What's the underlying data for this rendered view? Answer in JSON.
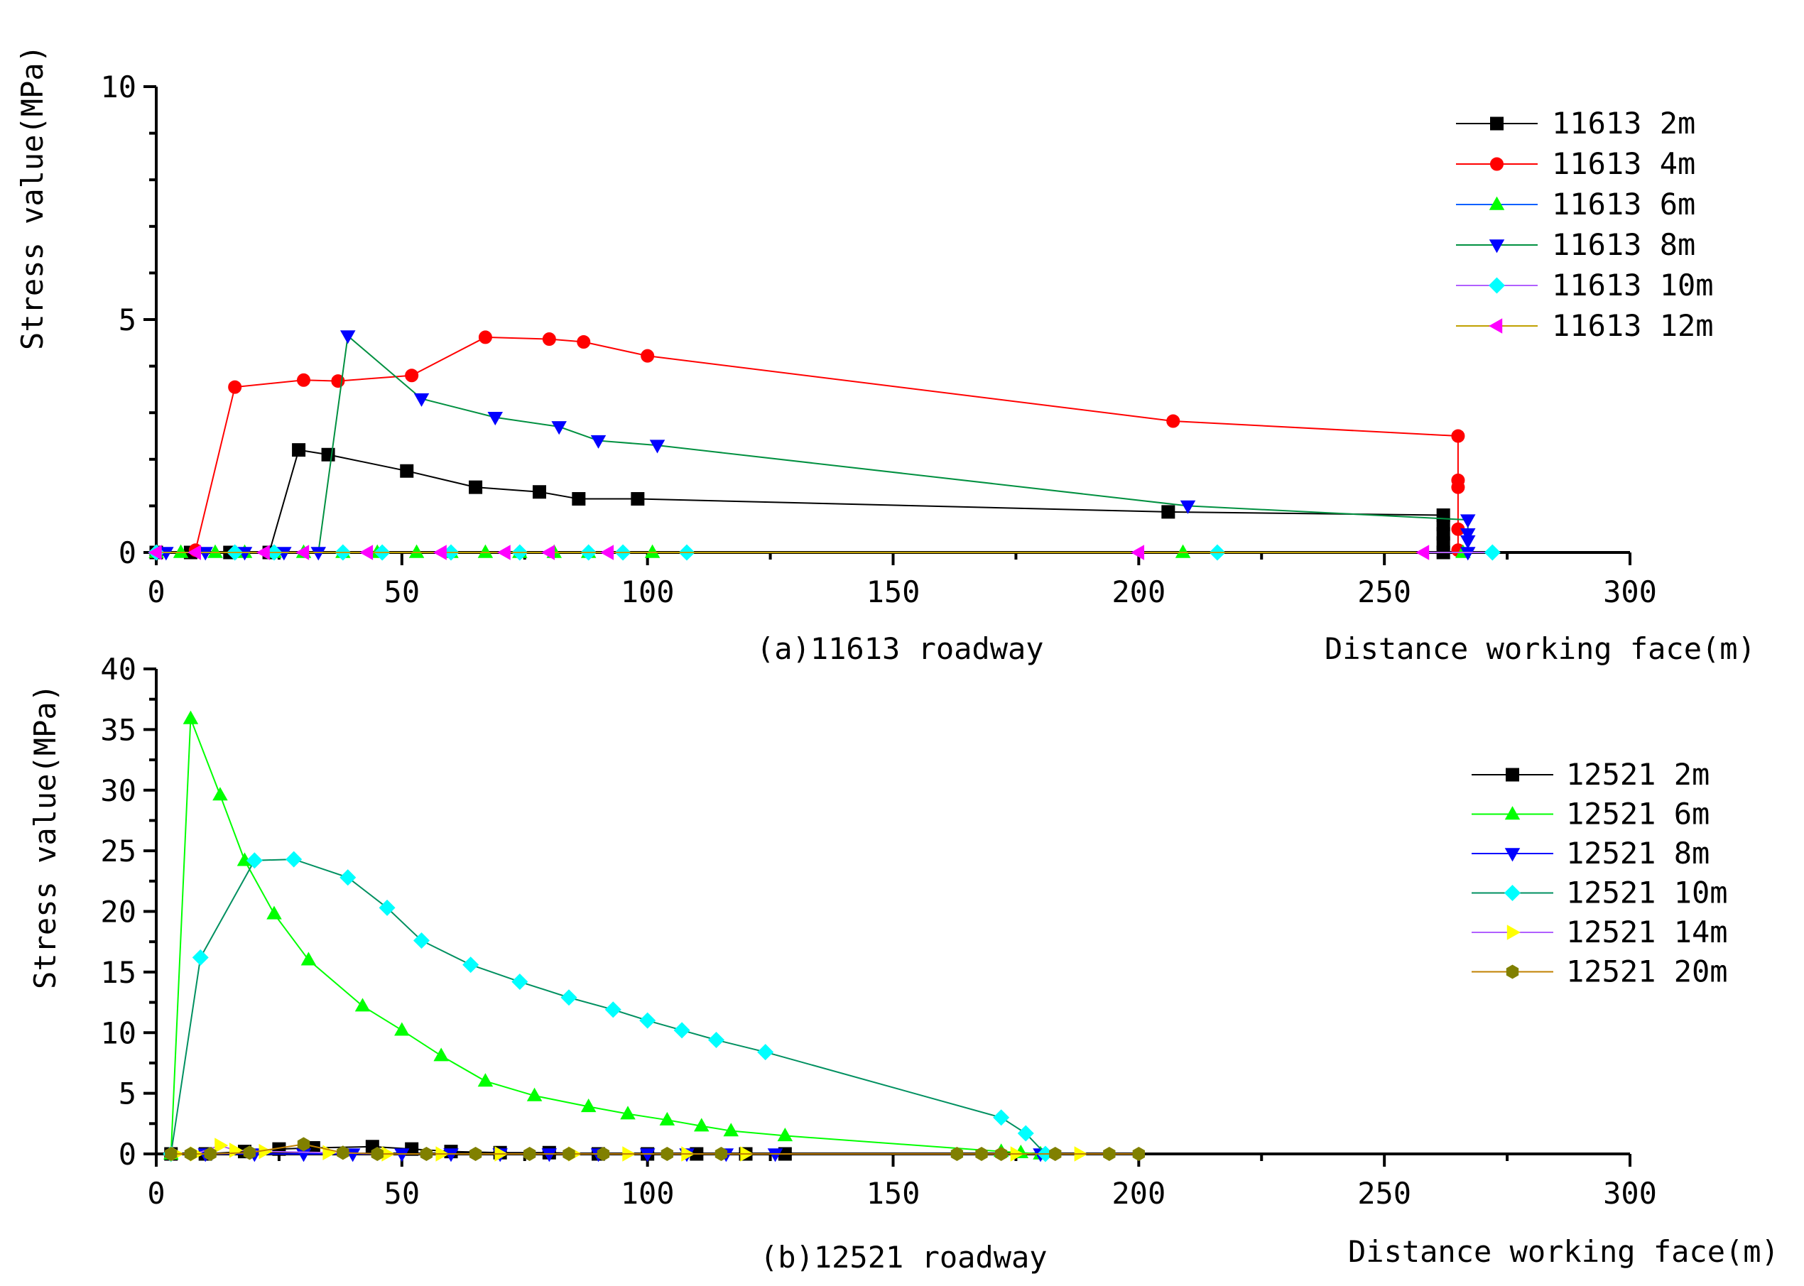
{
  "chart_data": [
    {
      "type": "line",
      "caption": "(a)11613 roadway",
      "xlabel": "Distance working face(m)",
      "ylabel": "Stress value(MPa)",
      "xlim": [
        0,
        300
      ],
      "ylim": [
        0,
        10
      ],
      "xticks": [
        "0",
        "50",
        "100",
        "150",
        "200",
        "250",
        "300"
      ],
      "yticks": [
        "0",
        "5",
        "10"
      ],
      "legend_position": "top-right",
      "series": [
        {
          "name": "11613 2m",
          "color": "#000000",
          "line_color": "#000000",
          "marker": "square",
          "x": [
            0,
            7,
            15,
            23,
            29,
            35,
            51,
            65,
            78,
            86,
            98,
            206,
            262,
            262,
            262,
            262,
            262
          ],
          "y": [
            0,
            0,
            0,
            0,
            2.2,
            2.1,
            1.75,
            1.4,
            1.3,
            1.15,
            1.15,
            0.87,
            0.8,
            0.6,
            0.4,
            0.2,
            0
          ]
        },
        {
          "name": "11613 4m",
          "color": "#ff0000",
          "line_color": "#ff0000",
          "marker": "circle",
          "x": [
            8,
            16,
            30,
            37,
            52,
            67,
            80,
            87,
            100,
            207,
            265,
            265,
            265,
            265,
            265
          ],
          "y": [
            0.05,
            3.55,
            3.7,
            3.68,
            3.8,
            4.62,
            4.58,
            4.52,
            4.22,
            2.82,
            2.5,
            1.55,
            1.4,
            0.5,
            0.05
          ]
        },
        {
          "name": "11613 6m",
          "color": "#00ff00",
          "line_color": "#0060ff",
          "marker": "triangle-up",
          "x": [
            0,
            5,
            12,
            18,
            24,
            30,
            38,
            45,
            53,
            60,
            67,
            74,
            81,
            88,
            101,
            209,
            266
          ],
          "y": [
            0,
            0,
            0,
            0,
            0,
            0,
            0,
            0,
            0,
            0,
            0,
            0,
            0,
            0,
            0,
            0,
            0
          ]
        },
        {
          "name": "11613 8m",
          "color": "#0000ff",
          "line_color": "#009040",
          "marker": "triangle-down",
          "x": [
            2,
            10,
            18,
            26,
            33,
            39,
            54,
            69,
            82,
            90,
            102,
            210,
            267,
            267,
            267,
            267
          ],
          "y": [
            0,
            0,
            0,
            0,
            0,
            4.65,
            3.3,
            2.9,
            2.7,
            2.4,
            2.3,
            1.0,
            0.7,
            0.4,
            0.25,
            0
          ]
        },
        {
          "name": "11613 10m",
          "color": "#00ffff",
          "line_color": "#b060ff",
          "marker": "diamond",
          "x": [
            0,
            16,
            24,
            38,
            46,
            60,
            74,
            88,
            95,
            108,
            216,
            272
          ],
          "y": [
            0,
            0,
            0,
            0,
            0,
            0,
            0,
            0,
            0,
            0,
            0,
            0
          ]
        },
        {
          "name": "11613 12m",
          "color": "#ff00ff",
          "line_color": "#c0a000",
          "marker": "triangle-left",
          "x": [
            0,
            8,
            22,
            30,
            43,
            58,
            71,
            80,
            92,
            200,
            258
          ],
          "y": [
            0,
            0,
            0,
            0,
            0,
            0,
            0,
            0,
            0,
            0,
            0
          ]
        }
      ]
    },
    {
      "type": "line",
      "caption": "(b)12521 roadway",
      "xlabel": "Distance working face(m)",
      "ylabel": "Stress value(MPa)",
      "xlim": [
        0,
        300
      ],
      "ylim": [
        0,
        40
      ],
      "xticks": [
        "0",
        "50",
        "100",
        "150",
        "200",
        "250",
        "300"
      ],
      "yticks": [
        "0",
        "5",
        "10",
        "15",
        "20",
        "25",
        "30",
        "35",
        "40"
      ],
      "legend_position": "top-right",
      "series": [
        {
          "name": "12521 2m",
          "color": "#000000",
          "line_color": "#000000",
          "marker": "square",
          "x": [
            3,
            10,
            18,
            25,
            32,
            44,
            52,
            60,
            70,
            80,
            90,
            100,
            110,
            120,
            128
          ],
          "y": [
            0,
            0,
            0.2,
            0.4,
            0.5,
            0.6,
            0.4,
            0.2,
            0.1,
            0.1,
            0,
            0,
            0,
            0,
            0
          ]
        },
        {
          "name": "12521 6m",
          "color": "#00ff00",
          "line_color": "#00ff00",
          "marker": "triangle-up",
          "x": [
            3,
            7,
            13,
            18,
            24,
            31,
            42,
            50,
            58,
            67,
            77,
            88,
            96,
            104,
            111,
            117,
            128,
            172,
            176,
            180
          ],
          "y": [
            0,
            35.9,
            29.6,
            24.2,
            19.8,
            16.0,
            12.2,
            10.2,
            8.1,
            6.0,
            4.8,
            3.9,
            3.3,
            2.8,
            2.3,
            1.9,
            1.5,
            0.2,
            0.1,
            0
          ]
        },
        {
          "name": "12521 8m",
          "color": "#0000ff",
          "line_color": "#0000ff",
          "marker": "triangle-down",
          "x": [
            10,
            20,
            30,
            40,
            50,
            60,
            70,
            80,
            90,
            100,
            108,
            116,
            126,
            180
          ],
          "y": [
            0,
            0,
            0,
            0,
            0,
            0,
            0,
            0,
            0,
            0,
            0,
            0,
            0,
            0
          ]
        },
        {
          "name": "12521 10m",
          "color": "#00ffff",
          "line_color": "#009060",
          "marker": "diamond",
          "x": [
            3,
            9,
            20,
            28,
            39,
            47,
            54,
            64,
            74,
            84,
            93,
            100,
            107,
            114,
            124,
            172,
            177,
            181
          ],
          "y": [
            0,
            16.2,
            24.2,
            24.3,
            22.8,
            20.3,
            17.6,
            15.6,
            14.2,
            12.9,
            11.9,
            11.0,
            10.2,
            9.4,
            8.4,
            3.0,
            1.7,
            0
          ]
        },
        {
          "name": "12521 14m",
          "color": "#ffff00",
          "line_color": "#b060ff",
          "marker": "triangle-right",
          "x": [
            4,
            8,
            13,
            16,
            22,
            35,
            47,
            58,
            70,
            85,
            96,
            108,
            120,
            175,
            188
          ],
          "y": [
            0,
            0,
            0.7,
            0.3,
            0.2,
            0.1,
            0,
            0,
            0,
            0,
            0,
            0,
            0,
            0,
            0
          ]
        },
        {
          "name": "12521 20m",
          "color": "#808000",
          "line_color": "#c08000",
          "marker": "hexagon",
          "x": [
            3,
            7,
            11,
            19,
            30,
            38,
            45,
            55,
            65,
            76,
            84,
            91,
            104,
            115,
            163,
            168,
            172,
            183,
            194,
            200
          ],
          "y": [
            0,
            0,
            0,
            0.1,
            0.8,
            0.1,
            0,
            0,
            0,
            0,
            0,
            0,
            0,
            0,
            0,
            0,
            0,
            0,
            0,
            0
          ]
        }
      ]
    }
  ]
}
